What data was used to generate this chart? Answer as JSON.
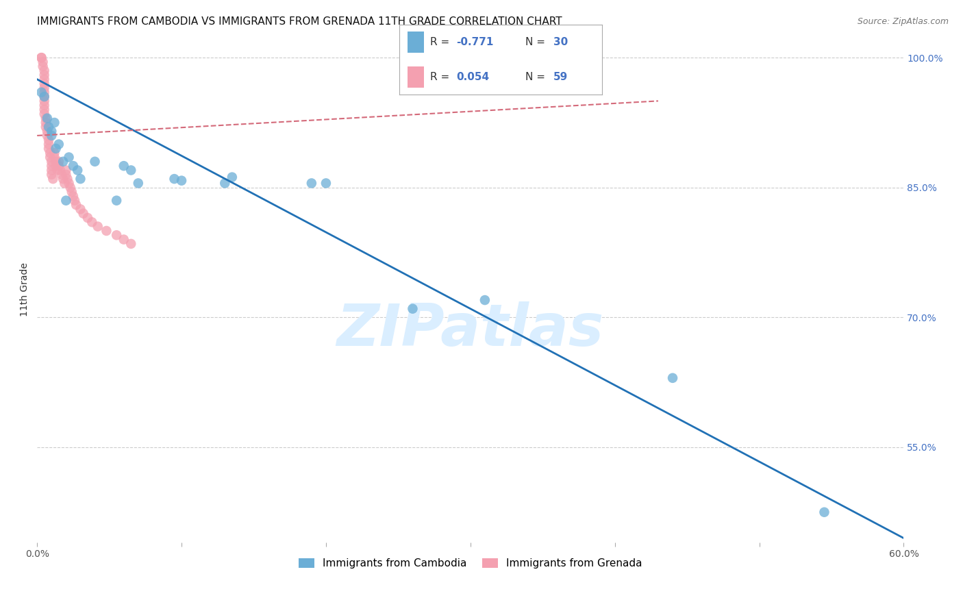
{
  "title": "IMMIGRANTS FROM CAMBODIA VS IMMIGRANTS FROM GRENADA 11TH GRADE CORRELATION CHART",
  "source": "Source: ZipAtlas.com",
  "ylabel": "11th Grade",
  "x_min": 0.0,
  "x_max": 0.6,
  "y_min": 0.44,
  "y_max": 1.025,
  "right_yticks": [
    1.0,
    0.85,
    0.7,
    0.55
  ],
  "right_yticklabels": [
    "100.0%",
    "85.0%",
    "70.0%",
    "55.0%"
  ],
  "xticks": [
    0.0,
    0.1,
    0.2,
    0.3,
    0.4,
    0.5,
    0.6
  ],
  "xticklabels": [
    "0.0%",
    "",
    "",
    "",
    "",
    "",
    "60.0%"
  ],
  "color_cambodia": "#6baed6",
  "color_grenada": "#f4a0b0",
  "line_color_cambodia": "#2171b5",
  "line_color_grenada": "#d46a7a",
  "watermark": "ZIPatlas",
  "watermark_color": "#daeeff",
  "cambodia_x": [
    0.003,
    0.005,
    0.007,
    0.008,
    0.01,
    0.01,
    0.012,
    0.013,
    0.015,
    0.018,
    0.02,
    0.022,
    0.025,
    0.028,
    0.03,
    0.04,
    0.055,
    0.06,
    0.065,
    0.07,
    0.095,
    0.1,
    0.13,
    0.135,
    0.19,
    0.2,
    0.26,
    0.31,
    0.44,
    0.545
  ],
  "cambodia_y": [
    0.96,
    0.955,
    0.93,
    0.92,
    0.915,
    0.91,
    0.925,
    0.895,
    0.9,
    0.88,
    0.835,
    0.885,
    0.875,
    0.87,
    0.86,
    0.88,
    0.835,
    0.875,
    0.87,
    0.855,
    0.86,
    0.858,
    0.855,
    0.862,
    0.855,
    0.855,
    0.71,
    0.72,
    0.63,
    0.475
  ],
  "grenada_x": [
    0.003,
    0.003,
    0.004,
    0.004,
    0.005,
    0.005,
    0.005,
    0.005,
    0.005,
    0.005,
    0.005,
    0.005,
    0.005,
    0.005,
    0.005,
    0.006,
    0.006,
    0.006,
    0.007,
    0.007,
    0.008,
    0.008,
    0.008,
    0.009,
    0.009,
    0.01,
    0.01,
    0.01,
    0.01,
    0.011,
    0.012,
    0.012,
    0.013,
    0.013,
    0.014,
    0.015,
    0.015,
    0.016,
    0.017,
    0.018,
    0.019,
    0.02,
    0.02,
    0.021,
    0.022,
    0.023,
    0.024,
    0.025,
    0.026,
    0.027,
    0.03,
    0.032,
    0.035,
    0.038,
    0.042,
    0.048,
    0.055,
    0.06,
    0.065
  ],
  "grenada_y": [
    1.0,
    1.0,
    0.995,
    0.99,
    0.985,
    0.98,
    0.975,
    0.97,
    0.965,
    0.96,
    0.955,
    0.95,
    0.945,
    0.94,
    0.935,
    0.93,
    0.925,
    0.92,
    0.915,
    0.91,
    0.905,
    0.9,
    0.895,
    0.89,
    0.885,
    0.88,
    0.875,
    0.87,
    0.865,
    0.86,
    0.89,
    0.885,
    0.88,
    0.875,
    0.87,
    0.88,
    0.875,
    0.87,
    0.865,
    0.86,
    0.855,
    0.87,
    0.865,
    0.86,
    0.855,
    0.85,
    0.845,
    0.84,
    0.835,
    0.83,
    0.825,
    0.82,
    0.815,
    0.81,
    0.805,
    0.8,
    0.795,
    0.79,
    0.785
  ],
  "cam_line_x": [
    0.0,
    0.6
  ],
  "cam_line_y": [
    0.975,
    0.445
  ],
  "gren_line_x": [
    0.0,
    0.43
  ],
  "gren_line_y": [
    0.91,
    0.95
  ],
  "grid_color": "#cccccc",
  "background_color": "#ffffff",
  "title_fontsize": 11,
  "axis_label_fontsize": 10,
  "tick_fontsize": 10
}
